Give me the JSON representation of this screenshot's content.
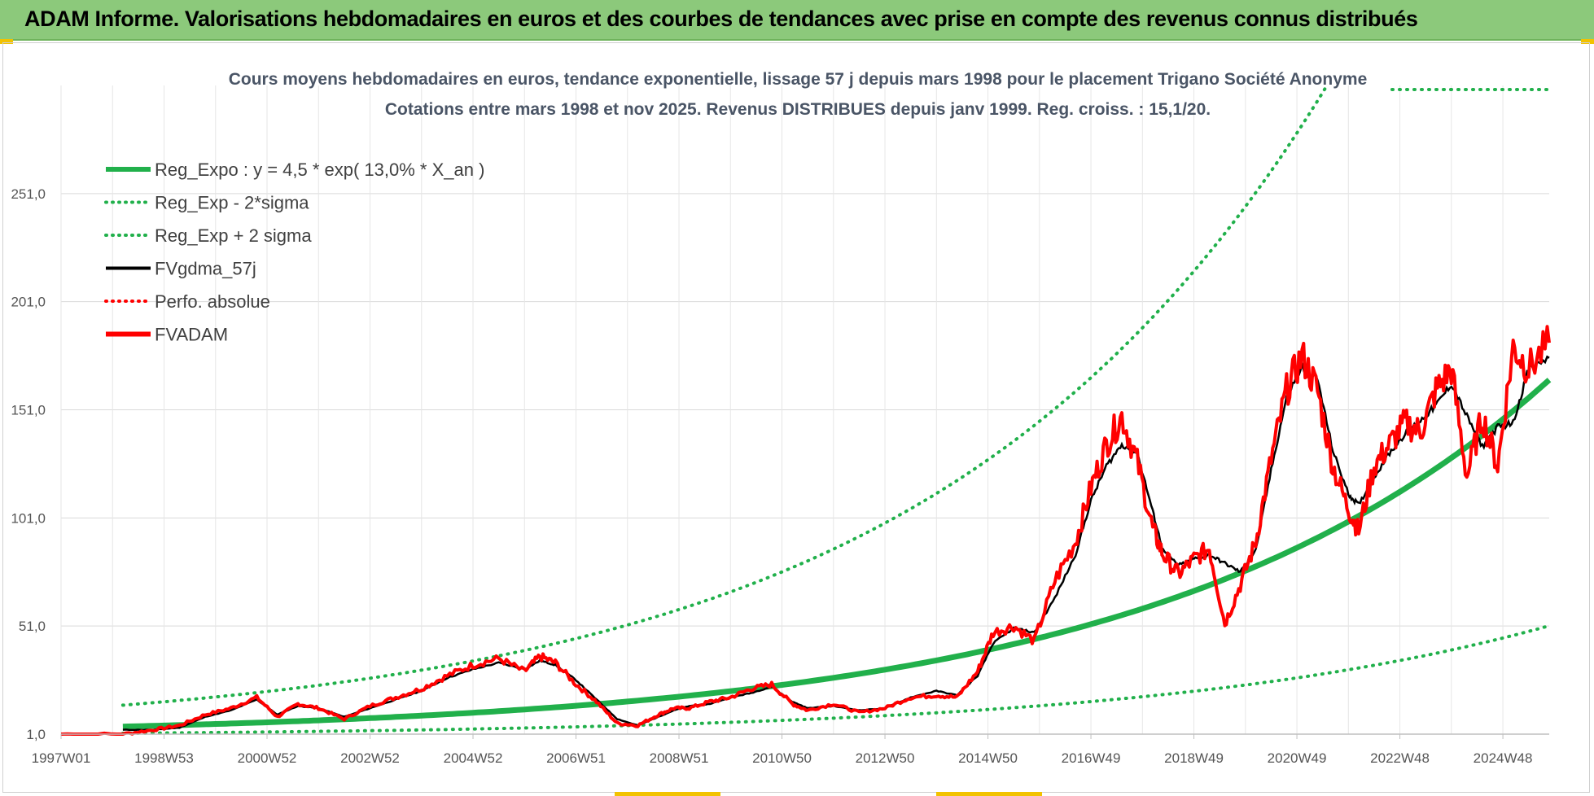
{
  "header": {
    "title": "ADAM Informe. Valorisations hebdomadaires en euros et des courbes de tendances avec prise en compte des revenus connus distribués"
  },
  "chart_data": {
    "type": "line",
    "title": "Cours moyens hebdomadaires en euros, tendance exponentielle, lissage 57 j depuis mars 1998 pour le placement Trigano Société Anonyme",
    "subtitle": "Cotations entre mars 1998 et nov 2025. Revenus DISTRIBUES depuis janv 1999. Reg. croiss. : 15,1/20.",
    "xlabel": "",
    "ylabel": "",
    "xlim": [
      1997.0,
      2025.9
    ],
    "ylim": [
      1.0,
      301.0
    ],
    "x_tick_labels": [
      "1997W01",
      "1998W53",
      "2000W52",
      "2002W52",
      "2004W52",
      "2006W51",
      "2008W51",
      "2010W50",
      "2012W50",
      "2014W50",
      "2016W49",
      "2018W49",
      "2020W49",
      "2022W48",
      "2024W48"
    ],
    "x_ticks": [
      1997.0,
      1999.0,
      2001.0,
      2003.0,
      2005.0,
      2007.0,
      2009.0,
      2011.0,
      2013.0,
      2015.0,
      2017.0,
      2019.0,
      2021.0,
      2023.0,
      2025.0
    ],
    "y_tick_labels": [
      "1,0",
      "51,0",
      "101,0",
      "151,0",
      "201,0",
      "251,0"
    ],
    "y_ticks": [
      1,
      51,
      101,
      151,
      201,
      251
    ],
    "grid": true,
    "legend_position": "top-left",
    "legend": [
      {
        "label": "Reg_Expo : y = 4,5 * exp( 13,0% *  X_an )",
        "color": "#21b04b",
        "style": "solid-thick"
      },
      {
        "label": "Reg_Exp - 2*sigma",
        "color": "#21b04b",
        "style": "dotted"
      },
      {
        "label": "Reg_Exp + 2 sigma",
        "color": "#21b04b",
        "style": "dotted"
      },
      {
        "label": "FVgdma_57j",
        "color": "#000000",
        "style": "solid"
      },
      {
        "label": "Perfo. absolue",
        "color": "#ff0000",
        "style": "dotted"
      },
      {
        "label": "FVADAM",
        "color": "#ff0000",
        "style": "solid-thick"
      }
    ],
    "series": [
      {
        "name": "Reg_Expo",
        "color": "#21b04b",
        "formula": "4.5*exp(0.13*(x-1998.2))",
        "x_range": [
          1998.2,
          2025.9
        ]
      },
      {
        "name": "Reg_Exp - 2*sigma",
        "color": "#21b04b",
        "factor_of_reg": 0.31,
        "x_range": [
          1998.2,
          2025.9
        ]
      },
      {
        "name": "Reg_Exp + 2 sigma",
        "color": "#21b04b",
        "factor_of_reg": 3.2,
        "x_range": [
          1998.2,
          2025.9
        ]
      },
      {
        "name": "FVgdma_57j",
        "color": "#000000",
        "x": [
          1998.2,
          1998.8,
          1999.3,
          1999.8,
          2000.3,
          2000.8,
          2001.2,
          2001.6,
          2002.0,
          2002.5,
          2003.0,
          2003.5,
          2004.0,
          2004.5,
          2005.0,
          2005.5,
          2006.0,
          2006.3,
          2006.6,
          2007.0,
          2007.4,
          2007.8,
          2008.2,
          2008.6,
          2008.9,
          2009.2,
          2009.6,
          2010.0,
          2010.4,
          2010.8,
          2011.2,
          2011.5,
          2012.0,
          2012.5,
          2013.0,
          2013.5,
          2014.0,
          2014.4,
          2014.8,
          2015.1,
          2015.5,
          2015.9,
          2016.3,
          2016.7,
          2017.0,
          2017.3,
          2017.6,
          2017.9,
          2018.2,
          2018.4,
          2018.7,
          2019.0,
          2019.3,
          2019.6,
          2019.9,
          2020.2,
          2020.5,
          2020.8,
          2021.1,
          2021.4,
          2021.7,
          2022.0,
          2022.2,
          2022.5,
          2022.8,
          2023.1,
          2023.4,
          2023.7,
          2024.0,
          2024.3,
          2024.6,
          2024.9,
          2025.2,
          2025.5,
          2025.9
        ],
        "values": [
          3,
          3,
          4,
          9,
          12,
          17,
          10,
          14,
          13,
          9,
          13,
          17,
          21,
          27,
          31,
          34,
          31,
          35,
          33,
          26,
          17,
          8,
          5,
          9,
          12,
          14,
          15,
          18,
          20,
          23,
          16,
          13,
          14,
          12,
          13,
          18,
          21,
          19,
          28,
          43,
          50,
          48,
          64,
          84,
          109,
          125,
          135,
          131,
          104,
          86,
          79,
          82,
          84,
          80,
          76,
          86,
          123,
          157,
          171,
          165,
          132,
          112,
          107,
          120,
          131,
          140,
          146,
          153,
          163,
          148,
          134,
          143,
          145,
          170,
          175
        ]
      },
      {
        "name": "FVADAM",
        "color": "#ff0000",
        "x": [
          1997.0,
          1998.2,
          1998.8,
          1999.3,
          1999.8,
          2000.3,
          2000.8,
          2001.2,
          2001.6,
          2002.0,
          2002.5,
          2003.0,
          2003.5,
          2004.0,
          2004.5,
          2005.0,
          2005.5,
          2006.0,
          2006.3,
          2006.6,
          2007.0,
          2007.4,
          2007.8,
          2008.2,
          2008.6,
          2008.9,
          2009.2,
          2009.6,
          2010.0,
          2010.4,
          2010.8,
          2011.2,
          2011.5,
          2012.0,
          2012.5,
          2013.0,
          2013.5,
          2014.0,
          2014.4,
          2014.8,
          2015.1,
          2015.5,
          2015.9,
          2016.3,
          2016.7,
          2017.0,
          2017.3,
          2017.6,
          2017.9,
          2018.2,
          2018.4,
          2018.7,
          2019.0,
          2019.3,
          2019.6,
          2019.9,
          2020.2,
          2020.5,
          2020.8,
          2021.1,
          2021.4,
          2021.7,
          2022.0,
          2022.2,
          2022.5,
          2022.8,
          2023.1,
          2023.4,
          2023.7,
          2024.0,
          2024.3,
          2024.6,
          2024.9,
          2025.2,
          2025.5,
          2025.9
        ],
        "values": [
          1,
          1,
          3,
          5,
          10,
          13,
          18,
          9,
          15,
          13,
          8,
          14,
          18,
          22,
          28,
          33,
          36,
          30,
          37,
          34,
          24,
          16,
          6,
          5,
          10,
          13,
          13,
          16,
          18,
          22,
          24,
          15,
          12,
          15,
          11,
          13,
          18,
          19,
          18,
          30,
          48,
          51,
          44,
          72,
          90,
          115,
          135,
          148,
          127,
          96,
          84,
          75,
          82,
          87,
          52,
          70,
          90,
          128,
          160,
          176,
          160,
          125,
          105,
          95,
          125,
          135,
          145,
          141,
          160,
          170,
          120,
          148,
          125,
          180,
          170,
          182
        ]
      }
    ]
  }
}
